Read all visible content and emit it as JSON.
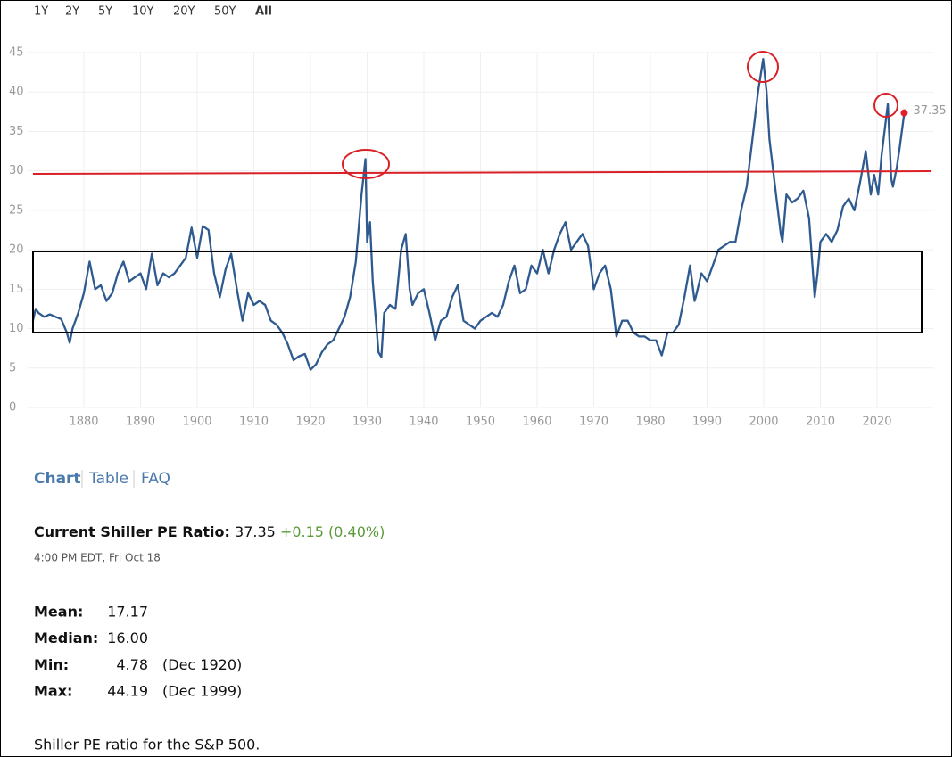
{
  "range_tabs": [
    "1Y",
    "2Y",
    "5Y",
    "10Y",
    "20Y",
    "50Y",
    "All"
  ],
  "chart_data": {
    "type": "line",
    "color": "#2f5a8f",
    "point_color": "#e0202a",
    "grid": true,
    "xlim": [
      1870,
      2030
    ],
    "xticks": [
      1880,
      1890,
      1900,
      1910,
      1920,
      1930,
      1940,
      1950,
      1960,
      1970,
      1980,
      1990,
      2000,
      2010,
      2020
    ],
    "ylim": [
      0,
      45
    ],
    "yticks": [
      0,
      5,
      10,
      15,
      20,
      25,
      30,
      35,
      40,
      45
    ],
    "x": [
      1871,
      1871.5,
      1872,
      1873,
      1874,
      1875,
      1876,
      1877,
      1877.5,
      1878,
      1879,
      1880,
      1881,
      1882,
      1883,
      1884,
      1885,
      1886,
      1887,
      1888,
      1889,
      1890,
      1891,
      1892,
      1893,
      1894,
      1895,
      1896,
      1897,
      1898,
      1899,
      1900,
      1901,
      1902,
      1903,
      1904,
      1905,
      1906,
      1907,
      1908,
      1909,
      1910,
      1911,
      1912,
      1913,
      1914,
      1915,
      1916,
      1917,
      1918,
      1919,
      1920,
      1921,
      1922,
      1923,
      1924,
      1925,
      1926,
      1927,
      1928,
      1929,
      1929.7,
      1930,
      1930.5,
      1931,
      1932,
      1932.5,
      1933,
      1934,
      1935,
      1936,
      1936.8,
      1937.5,
      1938,
      1939,
      1940,
      1941,
      1942,
      1943,
      1944,
      1945,
      1946,
      1947,
      1948,
      1949,
      1950,
      1951,
      1952,
      1953,
      1954,
      1955,
      1956,
      1957,
      1958,
      1959,
      1960,
      1961,
      1962,
      1963,
      1964,
      1965,
      1966,
      1967,
      1968,
      1969,
      1970,
      1971,
      1972,
      1973,
      1974,
      1975,
      1976,
      1977,
      1978,
      1979,
      1980,
      1981,
      1982,
      1983,
      1984,
      1985,
      1986,
      1987,
      1987.8,
      1988,
      1989,
      1990,
      1991,
      1992,
      1993,
      1994,
      1995,
      1996,
      1997,
      1998,
      1999,
      1999.9,
      2000.5,
      2001,
      2002,
      2003,
      2003.3,
      2004,
      2005,
      2006,
      2007,
      2008,
      2009,
      2009.5,
      2010,
      2011,
      2012,
      2013,
      2014,
      2015,
      2016,
      2017,
      2018,
      2018.9,
      2019.5,
      2020.2,
      2020.8,
      2021.9,
      2022.5,
      2022.8,
      2023.5,
      2024,
      2024.8
    ],
    "values": [
      11,
      12.5,
      12,
      11.5,
      11.8,
      11.5,
      11.2,
      9.5,
      8.2,
      10,
      12,
      14.5,
      18.5,
      15,
      15.5,
      13.5,
      14.5,
      17,
      18.5,
      16,
      16.5,
      17,
      15,
      19.5,
      15.5,
      17,
      16.5,
      17,
      18,
      19,
      22.8,
      19,
      23,
      22.5,
      17,
      14,
      17.5,
      19.5,
      15,
      11,
      14.5,
      13,
      13.5,
      13,
      11,
      10.5,
      9.5,
      8,
      6,
      6.5,
      6.8,
      4.78,
      5.5,
      7,
      8,
      8.5,
      10,
      11.5,
      14,
      18.5,
      27,
      31.5,
      21,
      23.5,
      16,
      7,
      6.4,
      12,
      13,
      12.5,
      20,
      22,
      15,
      13,
      14.5,
      15,
      12,
      8.5,
      11,
      11.5,
      14,
      15.5,
      11,
      10.5,
      10,
      11,
      11.5,
      12,
      11.5,
      13,
      16,
      18,
      14.5,
      15,
      18,
      17,
      20,
      17,
      20,
      22,
      23.5,
      20,
      21,
      22,
      20.5,
      15,
      17,
      18,
      15,
      9,
      11,
      11,
      9.5,
      9,
      9,
      8.5,
      8.5,
      6.6,
      9.5,
      9.5,
      10.5,
      14,
      18,
      13.5,
      14,
      17,
      16,
      18,
      20,
      20.5,
      21,
      21,
      25,
      28,
      34,
      40,
      44.19,
      40,
      34,
      28,
      22,
      21,
      27,
      26,
      26.5,
      27.5,
      24,
      14,
      17,
      21,
      22,
      21,
      22.5,
      25.5,
      26.5,
      25,
      28.5,
      32.5,
      27,
      29.5,
      27,
      32,
      38.5,
      29,
      28,
      30.5,
      33,
      37.35
    ]
  },
  "view_tabs": [
    "Chart",
    "Table",
    "FAQ"
  ],
  "current": {
    "label": "Current Shiller PE Ratio:",
    "value": "37.35",
    "change": "+0.15 (0.40%)",
    "time": "4:00 PM EDT, Fri Oct 18"
  },
  "stats": [
    {
      "label": "Mean:",
      "value": "17.17"
    },
    {
      "label": "Median:",
      "value": "16.00"
    },
    {
      "label": "Min:",
      "value": "4.78",
      "date": "(Dec 1920)"
    },
    {
      "label": "Max:",
      "value": "44.19",
      "date": "(Dec 1999)"
    }
  ],
  "footer": "Shiller PE ratio for the S&P 500."
}
